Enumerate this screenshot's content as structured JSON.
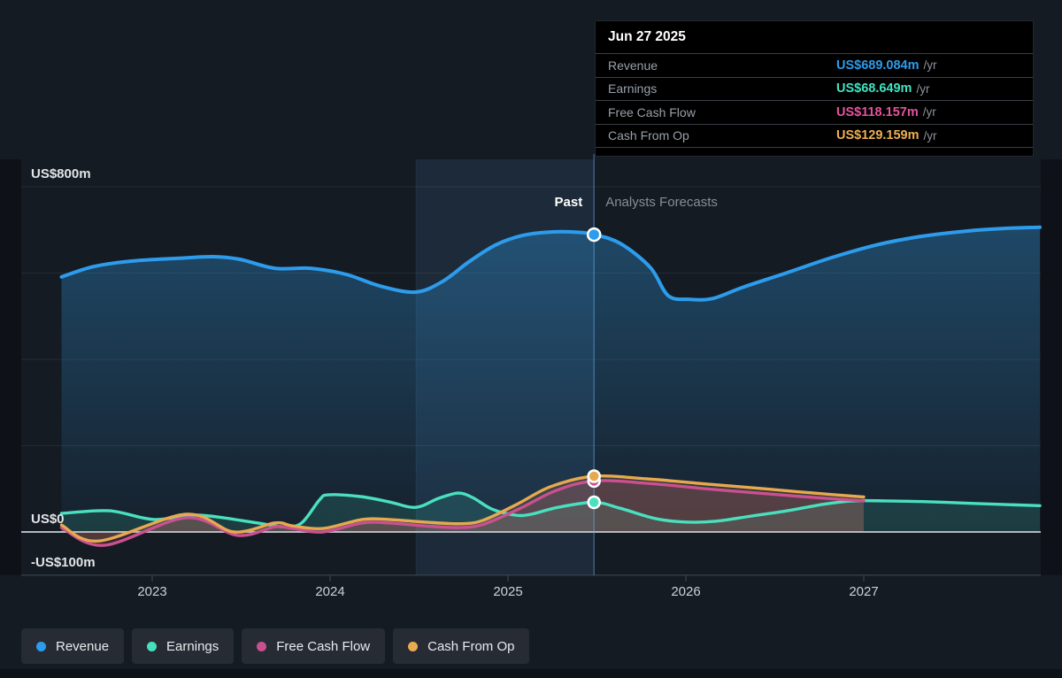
{
  "tooltip": {
    "date": "Jun 27 2025",
    "rows": [
      {
        "label": "Revenue",
        "value": "US$689.084m",
        "unit": "/yr",
        "color": "#2d9cec"
      },
      {
        "label": "Earnings",
        "value": "US$68.649m",
        "unit": "/yr",
        "color": "#40e3c0"
      },
      {
        "label": "Free Cash Flow",
        "value": "US$118.157m",
        "unit": "/yr",
        "color": "#e4549d"
      },
      {
        "label": "Cash From Op",
        "value": "US$129.159m",
        "unit": "/yr",
        "color": "#eeb052"
      }
    ]
  },
  "zones": {
    "past_label": "Past",
    "forecast_label": "Analysts Forecasts"
  },
  "legend": {
    "items": [
      {
        "label": "Revenue",
        "color": "#2d9cec"
      },
      {
        "label": "Earnings",
        "color": "#47e0bf"
      },
      {
        "label": "Free Cash Flow",
        "color": "#c9508f"
      },
      {
        "label": "Cash From Op",
        "color": "#e8ab51"
      }
    ]
  },
  "chart_data": {
    "type": "line",
    "x_axis": {
      "ticks": [
        2023,
        2024,
        2025,
        2026,
        2027
      ]
    },
    "y_axis": {
      "unit": "US$m",
      "min": -100,
      "max": 900,
      "faint_gridlines": [
        800,
        600,
        400,
        200
      ],
      "labels": [
        {
          "value": 800,
          "text": "US$800m"
        },
        {
          "value": 0,
          "text": "US$0"
        },
        {
          "value": -100,
          "text": "-US$100m"
        }
      ]
    },
    "divider_x": 2025.4836,
    "highlight_band": {
      "from": 2024.4836,
      "to": 2025.4836
    },
    "marker_x": 2025.4836,
    "series": [
      {
        "name": "Revenue",
        "color": "#2d9cec",
        "width": 4,
        "marker_value": 689.084,
        "fill": "gradient",
        "points": [
          [
            2022.49,
            591
          ],
          [
            2022.67,
            615
          ],
          [
            2022.89,
            628
          ],
          [
            2023.14,
            634
          ],
          [
            2023.34,
            638
          ],
          [
            2023.49,
            632
          ],
          [
            2023.69,
            611
          ],
          [
            2023.89,
            611
          ],
          [
            2024.09,
            597
          ],
          [
            2024.28,
            570
          ],
          [
            2024.48,
            556
          ],
          [
            2024.63,
            580
          ],
          [
            2024.78,
            626
          ],
          [
            2024.93,
            665
          ],
          [
            2025.08,
            687
          ],
          [
            2025.23,
            695
          ],
          [
            2025.38,
            695
          ],
          [
            2025.4836,
            689.084
          ],
          [
            2025.63,
            669
          ],
          [
            2025.8,
            613
          ],
          [
            2025.9,
            548
          ],
          [
            2026.02,
            539
          ],
          [
            2026.15,
            541
          ],
          [
            2026.32,
            567
          ],
          [
            2026.57,
            601
          ],
          [
            2026.82,
            636
          ],
          [
            2027.07,
            665
          ],
          [
            2027.32,
            685
          ],
          [
            2027.57,
            697
          ],
          [
            2027.82,
            704
          ],
          [
            2027.99,
            706
          ]
        ]
      },
      {
        "name": "Earnings",
        "color": "#4ae0bf",
        "width": 3.4,
        "marker_value": 68.649,
        "fill": "rgba(74,224,191,0.14)",
        "points": [
          [
            2022.49,
            43
          ],
          [
            2022.76,
            49
          ],
          [
            2023.01,
            29
          ],
          [
            2023.26,
            39
          ],
          [
            2023.59,
            21
          ],
          [
            2023.74,
            12
          ],
          [
            2023.84,
            21
          ],
          [
            2023.94,
            74
          ],
          [
            2023.99,
            86
          ],
          [
            2024.17,
            82
          ],
          [
            2024.33,
            70
          ],
          [
            2024.48,
            57
          ],
          [
            2024.61,
            78
          ],
          [
            2024.72,
            90
          ],
          [
            2024.8,
            80
          ],
          [
            2024.91,
            53
          ],
          [
            2025.04,
            39
          ],
          [
            2025.13,
            41
          ],
          [
            2025.28,
            57
          ],
          [
            2025.4836,
            68.649
          ],
          [
            2025.63,
            55
          ],
          [
            2025.83,
            31
          ],
          [
            2026.0,
            23
          ],
          [
            2026.17,
            25
          ],
          [
            2026.37,
            37
          ],
          [
            2026.57,
            49
          ],
          [
            2026.77,
            64
          ],
          [
            2026.94,
            72
          ],
          [
            2027.12,
            72
          ],
          [
            2027.37,
            70
          ],
          [
            2027.62,
            66
          ],
          [
            2027.99,
            61
          ]
        ]
      },
      {
        "name": "Free Cash Flow",
        "color": "#cb5090",
        "width": 3.4,
        "marker_value": 118.157,
        "fill": "rgba(203,80,144,0.18)",
        "points": [
          [
            2022.49,
            10
          ],
          [
            2022.73,
            -31
          ],
          [
            2023.19,
            33
          ],
          [
            2023.48,
            -8
          ],
          [
            2023.69,
            12
          ],
          [
            2023.79,
            8
          ],
          [
            2023.96,
            0
          ],
          [
            2024.18,
            21
          ],
          [
            2024.33,
            21
          ],
          [
            2024.53,
            14
          ],
          [
            2024.73,
            10
          ],
          [
            2024.87,
            19
          ],
          [
            2025.07,
            55
          ],
          [
            2025.27,
            96
          ],
          [
            2025.4836,
            118.157
          ],
          [
            2025.78,
            113
          ],
          [
            2026.12,
            100
          ],
          [
            2026.47,
            88
          ],
          [
            2026.72,
            80
          ],
          [
            2027.0,
            72
          ]
        ]
      },
      {
        "name": "Cash From Op",
        "color": "#e6a94f",
        "width": 3.4,
        "marker_value": 129.159,
        "fill": "rgba(230,169,79,0.16)",
        "points": [
          [
            2022.49,
            16
          ],
          [
            2022.7,
            -21
          ],
          [
            2023.19,
            41
          ],
          [
            2023.46,
            0
          ],
          [
            2023.69,
            21
          ],
          [
            2023.79,
            14
          ],
          [
            2023.96,
            8
          ],
          [
            2024.18,
            29
          ],
          [
            2024.33,
            29
          ],
          [
            2024.53,
            23
          ],
          [
            2024.73,
            19
          ],
          [
            2024.86,
            27
          ],
          [
            2025.05,
            64
          ],
          [
            2025.24,
            105
          ],
          [
            2025.4836,
            129.159
          ],
          [
            2025.78,
            123
          ],
          [
            2026.12,
            111
          ],
          [
            2026.47,
            99
          ],
          [
            2026.72,
            90
          ],
          [
            2027.0,
            81
          ]
        ]
      }
    ]
  }
}
